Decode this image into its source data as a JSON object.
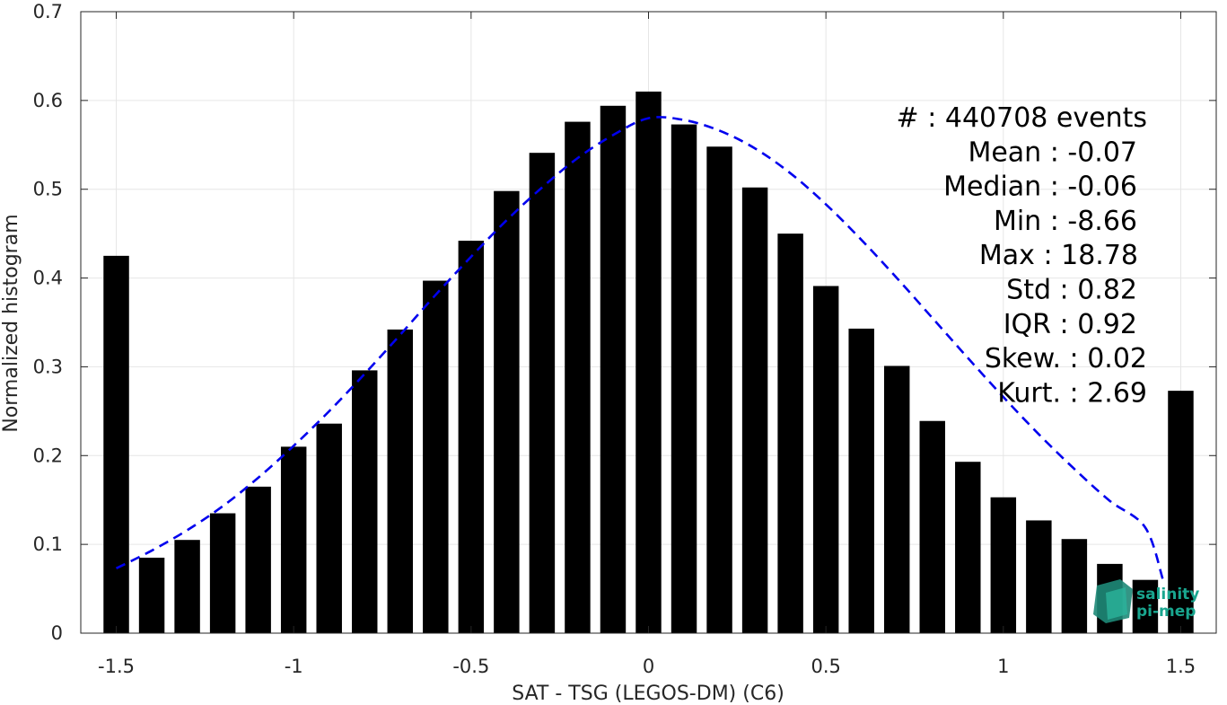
{
  "chart_data": {
    "type": "bar",
    "xlabel": "SAT - TSG (LEGOS-DM) (C6)",
    "ylabel": "Normalized histogram",
    "xlim": [
      -1.6,
      1.6
    ],
    "ylim": [
      0,
      0.7
    ],
    "xticks": [
      -1.5,
      -1,
      -0.5,
      0,
      0.5,
      1,
      1.5
    ],
    "xtick_labels": [
      "-1.5",
      "-1",
      "-0.5",
      "0",
      "0.5",
      "1",
      "1.5"
    ],
    "yticks": [
      0,
      0.1,
      0.2,
      0.3,
      0.4,
      0.5,
      0.6,
      0.7
    ],
    "ytick_labels": [
      "0",
      "0.1",
      "0.2",
      "0.3",
      "0.4",
      "0.5",
      "0.6",
      "0.7"
    ],
    "grid": true,
    "bar_color": "#000000",
    "bars": {
      "x": [
        -1.5,
        -1.4,
        -1.3,
        -1.2,
        -1.1,
        -1.0,
        -0.9,
        -0.8,
        -0.7,
        -0.6,
        -0.5,
        -0.4,
        -0.3,
        -0.2,
        -0.1,
        0.0,
        0.1,
        0.2,
        0.3,
        0.4,
        0.5,
        0.6,
        0.7,
        0.8,
        0.9,
        1.0,
        1.1,
        1.2,
        1.3,
        1.4,
        1.5
      ],
      "values": [
        0.425,
        0.085,
        0.105,
        0.135,
        0.165,
        0.21,
        0.236,
        0.296,
        0.342,
        0.397,
        0.442,
        0.498,
        0.541,
        0.576,
        0.594,
        0.61,
        0.573,
        0.548,
        0.502,
        0.45,
        0.391,
        0.343,
        0.301,
        0.239,
        0.193,
        0.153,
        0.127,
        0.106,
        0.078,
        0.06,
        0.273
      ]
    },
    "fit": {
      "style": "dashed",
      "color": "#0000ee",
      "x": [
        -1.5,
        -1.4,
        -1.3,
        -1.2,
        -1.1,
        -1.0,
        -0.9,
        -0.8,
        -0.7,
        -0.6,
        -0.5,
        -0.4,
        -0.3,
        -0.2,
        -0.1,
        0.0,
        0.1,
        0.2,
        0.3,
        0.4,
        0.5,
        0.6,
        0.7,
        0.8,
        0.9,
        1.0,
        1.1,
        1.2,
        1.3,
        1.4,
        1.45
      ],
      "values": [
        0.073,
        0.093,
        0.116,
        0.143,
        0.175,
        0.211,
        0.25,
        0.292,
        0.336,
        0.381,
        0.424,
        0.465,
        0.502,
        0.535,
        0.561,
        0.58,
        0.578,
        0.566,
        0.546,
        0.518,
        0.483,
        0.443,
        0.4,
        0.355,
        0.31,
        0.266,
        0.224,
        0.185,
        0.149,
        0.119,
        0.06
      ]
    },
    "stats": [
      "#  : 440708 events",
      "Mean : -0.07",
      "Median : -0.06",
      "Min : -8.66",
      "Max : 18.78",
      "Std : 0.82",
      "IQR : 0.92",
      "Skew. : 0.02",
      "Kurt. : 2.69"
    ],
    "stats_placement": "top-right"
  },
  "logo": {
    "line1": "salinity",
    "line2": "pi-mep",
    "color": "#19a68f"
  }
}
